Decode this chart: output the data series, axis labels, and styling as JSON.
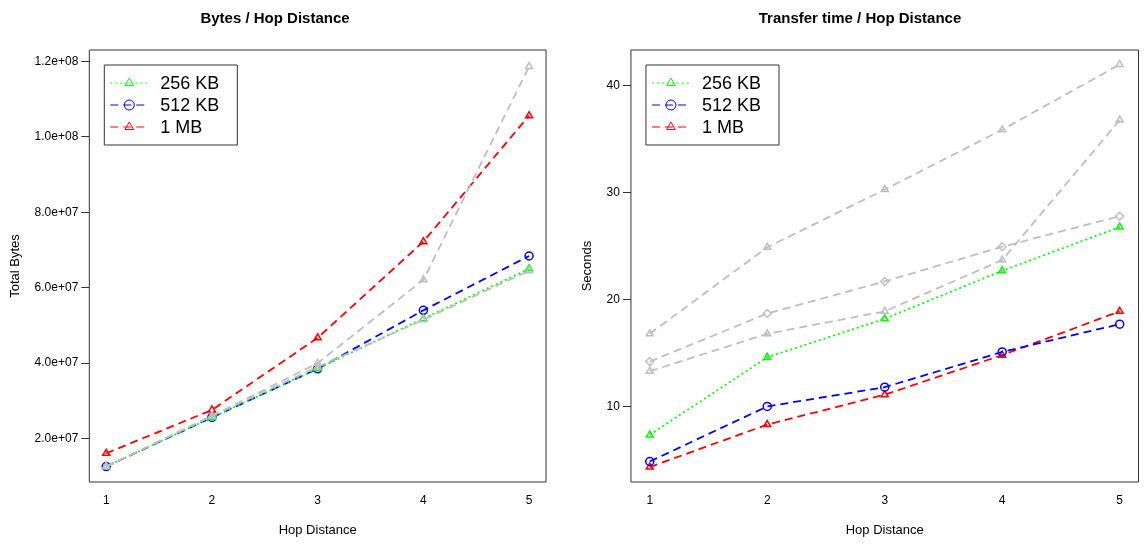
{
  "chart_data": [
    {
      "type": "line",
      "title": "Bytes / Hop Distance",
      "xlabel": "Hop Distance",
      "ylabel": "Total Bytes",
      "x": [
        1,
        2,
        3,
        4,
        5
      ],
      "xlim": [
        0.84,
        5.16
      ],
      "xticks": [
        1,
        2,
        3,
        4,
        5
      ],
      "ylim": [
        8500000,
        123000000
      ],
      "yticks": [
        {
          "value": 20000000,
          "label": "2.0e+07"
        },
        {
          "value": 40000000,
          "label": "4.0e+07"
        },
        {
          "value": 60000000,
          "label": "6.0e+07"
        },
        {
          "value": 80000000,
          "label": "8.0e+07"
        },
        {
          "value": 100000000,
          "label": "1.0e+08"
        },
        {
          "value": 120000000,
          "label": "1.2e+08"
        }
      ],
      "grid": false,
      "legend": "top left",
      "series": [
        {
          "color": "#bebebe",
          "marker": "triangle",
          "line_style": "dashed",
          "values": [
            12600000,
            26000000,
            39000000,
            51500000,
            64500000
          ]
        },
        {
          "color": "#bebebe",
          "marker": "triangle",
          "line_style": "dashed",
          "values": [
            12600000,
            26000000,
            40000000,
            62100000,
            118600000
          ]
        },
        {
          "name": "256 KB",
          "color": "#00ff00",
          "marker": "triangle",
          "line_style": "dotted",
          "values": [
            12600000,
            25600000,
            38600000,
            51800000,
            65000000
          ]
        },
        {
          "name": "512 KB",
          "color": "#0000ff",
          "marker": "circle",
          "line_style": "dashed",
          "values": [
            12600000,
            25600000,
            38500000,
            54000000,
            68400000
          ]
        },
        {
          "name": "1 MB",
          "color": "#ff0000",
          "marker": "triangle",
          "line_style": "dashed",
          "values": [
            16100000,
            27600000,
            46700000,
            72200000,
            105600000
          ]
        }
      ]
    },
    {
      "type": "line",
      "title": "Transfer time / Hop Distance",
      "xlabel": "Hop Distance",
      "ylabel": "Seconds",
      "x": [
        1,
        2,
        3,
        4,
        5
      ],
      "xlim": [
        0.84,
        5.16
      ],
      "xticks": [
        1,
        2,
        3,
        4,
        5
      ],
      "ylim": [
        2.93,
        43.36
      ],
      "yticks": [
        10,
        20,
        30,
        40
      ],
      "grid": false,
      "legend": "top left",
      "series": [
        {
          "color": "#bebebe",
          "marker": "triangle",
          "line_style": "dashed",
          "values": [
            16.8,
            24.9,
            30.3,
            35.9,
            42.0
          ]
        },
        {
          "color": "#bebebe",
          "marker": "diamond",
          "line_style": "dashed",
          "values": [
            14.2,
            18.7,
            21.7,
            24.95,
            27.8
          ]
        },
        {
          "color": "#bebebe",
          "marker": "triangle",
          "line_style": "dashed",
          "values": [
            13.3,
            16.8,
            18.9,
            23.7,
            36.8
          ]
        },
        {
          "name": "256 KB",
          "color": "#00ff00",
          "marker": "triangle",
          "line_style": "dotted",
          "values": [
            7.34,
            14.6,
            18.2,
            22.7,
            26.8
          ]
        },
        {
          "name": "512 KB",
          "color": "#0000ff",
          "marker": "circle",
          "line_style": "dashed",
          "values": [
            4.85,
            10.0,
            11.8,
            15.1,
            17.7
          ]
        },
        {
          "name": "1 MB",
          "color": "#ff0000",
          "marker": "triangle",
          "line_style": "dashed",
          "values": [
            4.33,
            8.3,
            11.1,
            14.8,
            18.9
          ]
        }
      ]
    }
  ]
}
